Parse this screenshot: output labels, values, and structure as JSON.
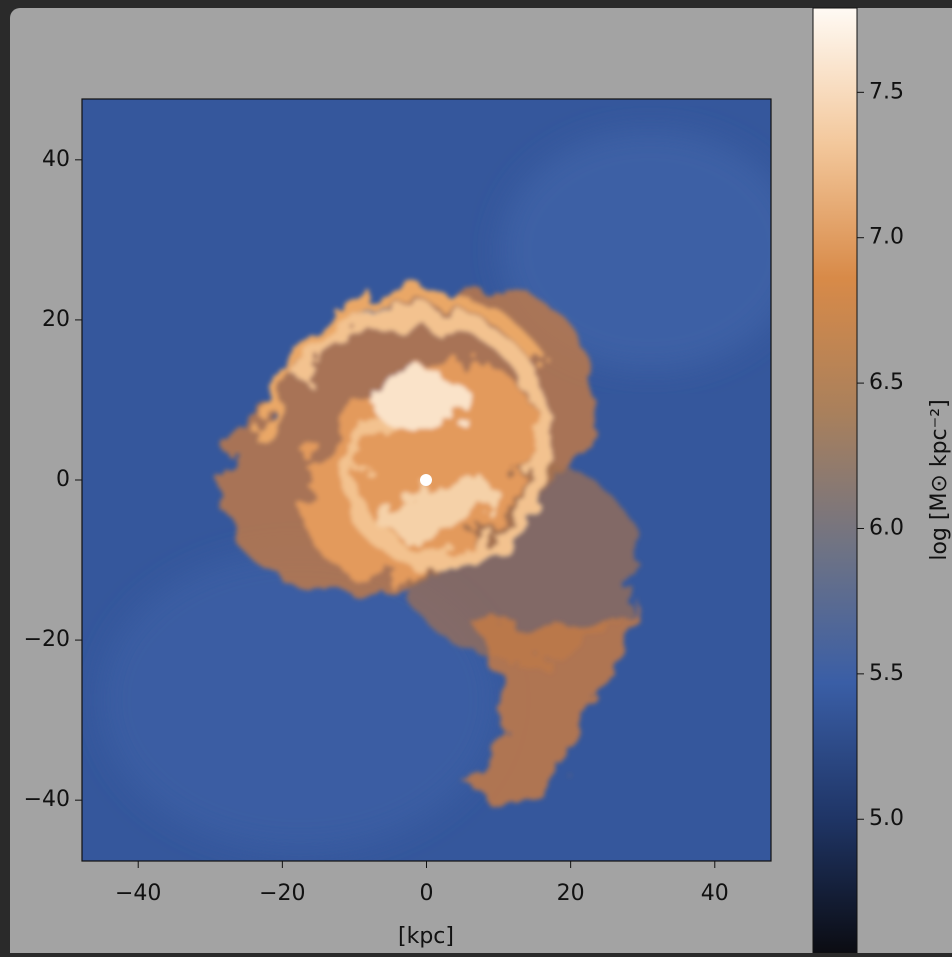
{
  "chart_data": {
    "type": "image",
    "xlabel": "[kpc]",
    "xlim": [
      -47.8,
      47.8
    ],
    "ylim": [
      -47.6,
      47.6
    ],
    "xticks": [
      {
        "value": -40,
        "label": "−40"
      },
      {
        "value": -20,
        "label": "−20"
      },
      0,
      20,
      40
    ],
    "yticks": [
      {
        "value": -40,
        "label": "−40"
      },
      {
        "value": -20,
        "label": "−20"
      },
      0,
      20,
      40
    ],
    "colorbar": {
      "label": "log [M⊙ kpc⁻²]",
      "lim": [
        4.54,
        7.79
      ],
      "ticks": [
        {
          "value": 5.0,
          "label": "5.0"
        },
        {
          "value": 5.5,
          "label": "5.5"
        },
        {
          "value": 6.0,
          "label": "6.0"
        },
        {
          "value": 6.5,
          "label": "6.5"
        },
        {
          "value": 7.0,
          "label": "7.0"
        },
        {
          "value": 7.5,
          "label": "7.5"
        }
      ],
      "colors": [
        "#0b0c12",
        "#1f3566",
        "#3a5ea6",
        "#6f7384",
        "#a9805c",
        "#d88a48",
        "#f3c89c",
        "#fffaf4"
      ]
    }
  }
}
